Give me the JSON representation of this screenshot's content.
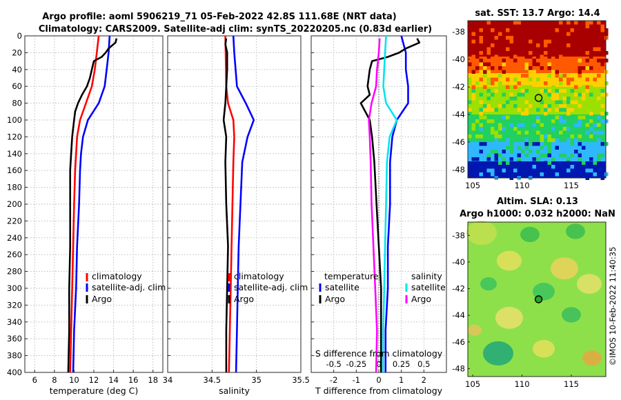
{
  "title": {
    "line1": "Argo profile: aoml 5906219_71 05-Feb-2022 42.8S 111.68E (NRT data)",
    "line2": "Climatology: CARS2009. Satellite-adj clim: synTS_20220205.nc (0.83d earlier)"
  },
  "colors": {
    "climatology": "#ff0000",
    "satellite": "#0000ff",
    "argo": "#000000",
    "cyan": "#00e5ee",
    "magenta": "#ff00ff"
  },
  "chart_data": [
    {
      "id": "temperature",
      "type": "line",
      "xlabel": "temperature (deg C)",
      "xlim": [
        5,
        19
      ],
      "xticks": [
        6,
        8,
        10,
        12,
        14,
        16,
        18
      ],
      "ylim": [
        0,
        400
      ],
      "yticks": [
        0,
        20,
        40,
        60,
        80,
        100,
        120,
        140,
        160,
        180,
        200,
        220,
        240,
        260,
        280,
        300,
        320,
        340,
        360,
        380,
        400
      ],
      "legend": {
        "position": "center-right",
        "entries": [
          "climatology",
          "satellite-adj. clim",
          "Argo"
        ]
      },
      "series": [
        {
          "name": "climatology",
          "color": "#ff0000",
          "depth": [
            0,
            20,
            40,
            60,
            80,
            100,
            120,
            140,
            160,
            200,
            250,
            300,
            350,
            400
          ],
          "values": [
            12.5,
            12.3,
            12.1,
            11.8,
            11.2,
            10.6,
            10.3,
            10.2,
            10.1,
            10.0,
            9.9,
            9.8,
            9.7,
            9.6
          ]
        },
        {
          "name": "satellite-adj. clim",
          "color": "#0000ff",
          "depth": [
            0,
            20,
            40,
            60,
            80,
            100,
            120,
            140,
            160,
            200,
            250,
            300,
            350,
            400
          ],
          "values": [
            13.6,
            13.5,
            13.3,
            13.1,
            12.5,
            11.4,
            10.9,
            10.7,
            10.6,
            10.5,
            10.3,
            10.2,
            10.0,
            9.9
          ]
        },
        {
          "name": "Argo",
          "color": "#000000",
          "depth": [
            3,
            8,
            15,
            20,
            25,
            30,
            40,
            50,
            60,
            70,
            80,
            90,
            100,
            120,
            140,
            160,
            200,
            250,
            300,
            350,
            400
          ],
          "values": [
            14.3,
            14.2,
            13.5,
            13.2,
            12.8,
            12.0,
            11.8,
            11.6,
            11.3,
            10.8,
            10.4,
            10.1,
            10.0,
            9.8,
            9.7,
            9.6,
            9.6,
            9.6,
            9.5,
            9.5,
            9.4
          ]
        }
      ]
    },
    {
      "id": "salinity",
      "type": "line",
      "xlabel": "salinity",
      "xlim": [
        34,
        35.5
      ],
      "xticks": [
        "34",
        "34.5",
        "35",
        "35.5"
      ],
      "ylim": [
        0,
        400
      ],
      "legend": {
        "position": "center-right",
        "entries": [
          "climatology",
          "satellite-adj. clim",
          "Argo"
        ]
      },
      "series": [
        {
          "name": "climatology",
          "color": "#ff0000",
          "depth": [
            0,
            60,
            80,
            100,
            120,
            150,
            200,
            250,
            300,
            350,
            400
          ],
          "values": [
            34.65,
            34.66,
            34.68,
            34.74,
            34.75,
            34.74,
            34.73,
            34.72,
            34.71,
            34.7,
            34.69
          ]
        },
        {
          "name": "satellite-adj. clim",
          "color": "#0000ff",
          "depth": [
            0,
            20,
            60,
            80,
            100,
            120,
            150,
            200,
            250,
            300,
            350,
            400
          ],
          "values": [
            34.74,
            34.75,
            34.78,
            34.88,
            34.97,
            34.9,
            34.84,
            34.82,
            34.8,
            34.79,
            34.78,
            34.77
          ]
        },
        {
          "name": "Argo",
          "color": "#000000",
          "depth": [
            3,
            10,
            20,
            40,
            60,
            80,
            100,
            120,
            150,
            200,
            250,
            300,
            350,
            400
          ],
          "values": [
            34.66,
            34.65,
            34.67,
            34.67,
            34.66,
            34.65,
            34.63,
            34.66,
            34.65,
            34.66,
            34.68,
            34.67,
            34.66,
            34.66
          ]
        }
      ]
    },
    {
      "id": "difference",
      "type": "line",
      "xlabel": "T difference from climatology",
      "xlim": [
        -3,
        3
      ],
      "xticks": [
        "-2",
        "-1",
        "0",
        "1",
        "2"
      ],
      "top_axis_label": "S difference from climatology",
      "top_ticks": [
        "-0.5",
        "-0.25",
        "0",
        "0.25",
        "0.5"
      ],
      "ylim": [
        0,
        400
      ],
      "legend": {
        "position": "center",
        "groups": [
          {
            "title": "temperature",
            "entries": [
              "satellite",
              "Argo"
            ]
          },
          {
            "title": "salinity",
            "entries": [
              "satellite",
              "Argo"
            ]
          }
        ]
      },
      "series": [
        {
          "name": "T satellite",
          "color": "#0000ff",
          "depth": [
            0,
            10,
            20,
            40,
            60,
            80,
            100,
            120,
            150,
            200,
            250,
            300,
            350,
            400
          ],
          "values": [
            1.0,
            1.1,
            1.2,
            1.2,
            1.3,
            1.3,
            0.8,
            0.6,
            0.5,
            0.5,
            0.4,
            0.4,
            0.3,
            0.3
          ]
        },
        {
          "name": "T Argo",
          "color": "#000000",
          "depth": [
            3,
            8,
            15,
            20,
            25,
            30,
            40,
            60,
            70,
            80,
            90,
            100,
            120,
            150,
            200,
            250,
            300,
            350,
            400
          ],
          "values": [
            1.7,
            1.8,
            1.2,
            0.9,
            0.4,
            -0.3,
            -0.4,
            -0.5,
            -0.4,
            -0.8,
            -0.6,
            -0.4,
            -0.3,
            -0.2,
            -0.1,
            0.0,
            0.1,
            0.1,
            0.1
          ]
        },
        {
          "name": "S satellite",
          "color": "#00e5ee",
          "depth": [
            0,
            20,
            40,
            60,
            80,
            100,
            120,
            150,
            200,
            250,
            300,
            350,
            400
          ],
          "values": [
            0.08,
            0.07,
            0.06,
            0.05,
            0.08,
            0.2,
            0.12,
            0.09,
            0.08,
            0.07,
            0.06,
            0.05,
            0.05
          ]
        },
        {
          "name": "S Argo",
          "color": "#ff00ff",
          "depth": [
            3,
            20,
            40,
            60,
            80,
            100,
            120,
            150,
            200,
            250,
            300,
            350,
            400
          ],
          "values": [
            0.01,
            0.0,
            -0.02,
            -0.03,
            -0.08,
            -0.11,
            -0.1,
            -0.09,
            -0.08,
            -0.06,
            -0.04,
            -0.02,
            -0.03
          ]
        }
      ]
    },
    {
      "id": "sst-map",
      "type": "heatmap",
      "title": "sat. SST: 13.7 Argo: 14.4",
      "xticks": [
        "105",
        "110",
        "115"
      ],
      "yticks": [
        "-38",
        "-40",
        "-42",
        "-44",
        "-46",
        "-48"
      ],
      "xlim": [
        104.5,
        118.5
      ],
      "ylim": [
        -37.2,
        -48.6
      ],
      "argo_position": {
        "lon": 111.68,
        "lat": -42.8
      },
      "color_zones": [
        {
          "lat_from": -37.2,
          "lat_to": -39.8,
          "color": "#a80000"
        },
        {
          "lat_from": -39.8,
          "lat_to": -41.0,
          "color": "#ff5a00"
        },
        {
          "lat_from": -41.0,
          "lat_to": -42.0,
          "color": "#ffd000"
        },
        {
          "lat_from": -42.0,
          "lat_to": -44.0,
          "color": "#9be000"
        },
        {
          "lat_from": -44.0,
          "lat_to": -46.0,
          "color": "#20d060"
        },
        {
          "lat_from": -46.0,
          "lat_to": -47.4,
          "color": "#30b8ff"
        },
        {
          "lat_from": -47.4,
          "lat_to": -48.6,
          "color": "#0018b0"
        }
      ]
    },
    {
      "id": "sla-map",
      "type": "heatmap",
      "title_line1": "Altim. SLA: 0.13",
      "title_line2": "Argo h1000: 0.032 h2000: NaN",
      "xticks": [
        "105",
        "110",
        "115"
      ],
      "yticks": [
        "-38",
        "-40",
        "-42",
        "-44",
        "-46",
        "-48"
      ],
      "xlim": [
        104.5,
        118.5
      ],
      "ylim": [
        -37.0,
        -48.6
      ],
      "argo_position": {
        "lon": 111.68,
        "lat": -42.8
      },
      "base_color": "#8ee04a"
    }
  ],
  "side_label": "©IMOS 10-Feb-2022 11:40:35"
}
